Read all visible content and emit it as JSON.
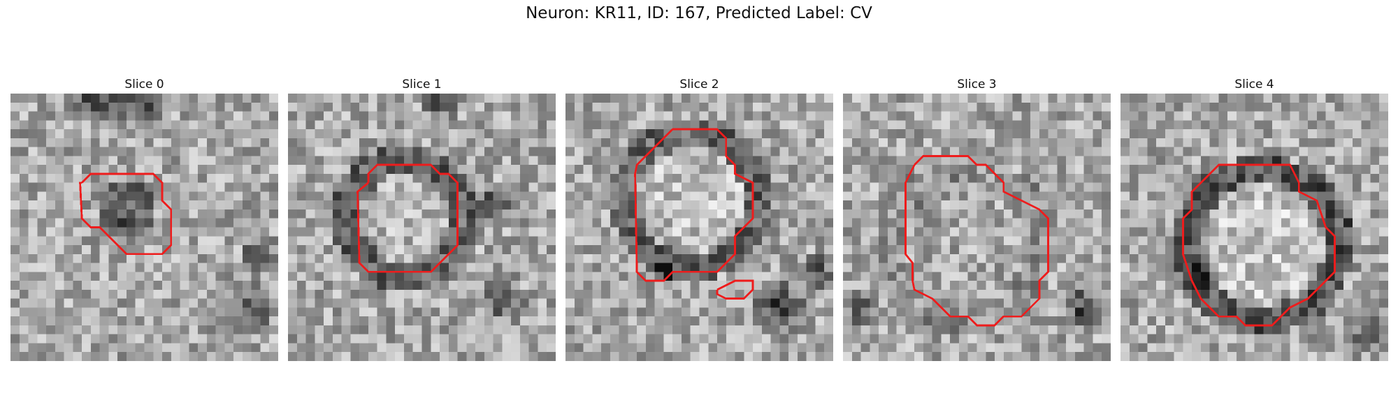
{
  "figure": {
    "title": "Neuron: KR11, ID: 167, Predicted Label: CV"
  },
  "panels": [
    {
      "title": "Slice 0"
    },
    {
      "title": "Slice 1"
    },
    {
      "title": "Slice 2"
    },
    {
      "title": "Slice 3"
    },
    {
      "title": "Slice 4"
    }
  ],
  "colors": {
    "contour": "#ee1c1c"
  }
}
